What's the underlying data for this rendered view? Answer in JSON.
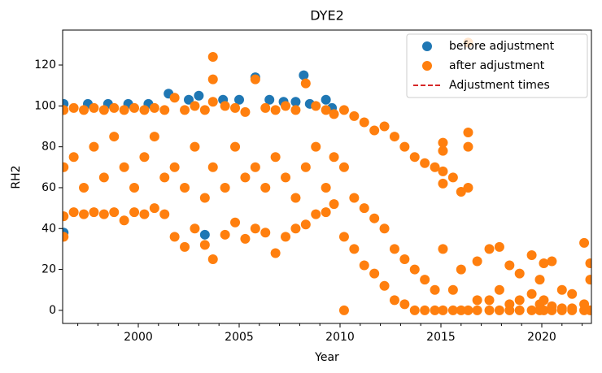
{
  "chart_data": {
    "type": "scatter",
    "title": "DYE2",
    "xlabel": "Year",
    "ylabel": "RH2",
    "xlim": [
      1996.25,
      2022.46
    ],
    "ylim": [
      -6.4,
      137.1
    ],
    "xticks": [
      2000,
      2005,
      2010,
      2015,
      2020
    ],
    "xminorticks": [
      1997,
      1998,
      1999,
      2001,
      2002,
      2003,
      2004,
      2006,
      2007,
      2008,
      2009,
      2011,
      2012,
      2013,
      2014,
      2016,
      2017,
      2018,
      2019,
      2021,
      2022
    ],
    "yticks": [
      0,
      20,
      40,
      60,
      80,
      100,
      120
    ],
    "legend": "upper right",
    "series": [
      {
        "name": "before adjustment",
        "color": "#1f77b4",
        "marker": "circle",
        "x": [
          1996.3,
          1996.3,
          1997.5,
          1998.5,
          1999.5,
          2000.5,
          2001.5,
          2002.5,
          2003.3,
          2003.0,
          2004.2,
          2005.0,
          2005.8,
          2006.5,
          2007.2,
          2007.8,
          2008.2,
          2008.5,
          2009.3,
          2009.6
        ],
        "values": [
          38,
          101,
          101,
          101,
          101,
          101,
          106,
          103,
          37,
          105,
          103,
          103,
          114,
          103,
          102,
          102,
          115,
          101,
          103,
          99
        ]
      },
      {
        "name": "after adjustment",
        "color": "#ff7f0e",
        "marker": "circle",
        "x": [
          1996.3,
          1996.3,
          1996.3,
          1996.3,
          1996.8,
          1996.8,
          1996.8,
          1997.3,
          1997.3,
          1997.3,
          1997.8,
          1997.8,
          1997.8,
          1998.3,
          1998.3,
          1998.3,
          1998.8,
          1998.8,
          1998.8,
          1999.3,
          1999.3,
          1999.3,
          1999.8,
          1999.8,
          1999.8,
          2000.3,
          2000.3,
          2000.3,
          2000.8,
          2000.8,
          2000.8,
          2001.3,
          2001.3,
          2001.3,
          2001.8,
          2001.8,
          2001.8,
          2002.3,
          2002.3,
          2002.3,
          2002.8,
          2002.8,
          2002.8,
          2003.3,
          2003.3,
          2003.3,
          2003.7,
          2003.7,
          2003.7,
          2003.7,
          2003.7,
          2004.3,
          2004.3,
          2004.3,
          2004.8,
          2004.8,
          2004.8,
          2005.3,
          2005.3,
          2005.3,
          2005.8,
          2005.8,
          2005.8,
          2006.3,
          2006.3,
          2006.3,
          2006.8,
          2006.8,
          2006.8,
          2007.3,
          2007.3,
          2007.3,
          2007.8,
          2007.8,
          2007.8,
          2008.3,
          2008.3,
          2008.3,
          2008.8,
          2008.8,
          2008.8,
          2009.3,
          2009.3,
          2009.3,
          2009.7,
          2009.7,
          2009.7,
          2010.2,
          2010.2,
          2010.2,
          2010.2,
          2010.7,
          2010.7,
          2010.7,
          2011.2,
          2011.2,
          2011.2,
          2011.7,
          2011.7,
          2011.7,
          2012.2,
          2012.2,
          2012.2,
          2012.7,
          2012.7,
          2012.7,
          2013.2,
          2013.2,
          2013.2,
          2013.7,
          2013.7,
          2013.7,
          2014.2,
          2014.2,
          2014.2,
          2014.7,
          2014.7,
          2014.7,
          2015.1,
          2015.1,
          2015.1,
          2015.1,
          2015.1,
          2015.1,
          2015.6,
          2015.6,
          2015.6,
          2016.0,
          2016.0,
          2016.0,
          2016.35,
          2016.35,
          2016.35,
          2016.35,
          2016.35,
          2016.8,
          2016.8,
          2016.8,
          2017.4,
          2017.4,
          2017.4,
          2017.9,
          2017.9,
          2017.9,
          2018.4,
          2018.4,
          2018.4,
          2018.9,
          2018.9,
          2018.9,
          2019.5,
          2019.5,
          2019.5,
          2019.9,
          2019.9,
          2019.9,
          2020.1,
          2020.1,
          2020.1,
          2020.5,
          2020.5,
          2020.5,
          2021.0,
          2021.0,
          2021.0,
          2021.5,
          2021.5,
          2021.5,
          2022.1,
          2022.1,
          2022.1,
          2022.4,
          2022.4,
          2022.4
        ],
        "values": [
          36,
          46,
          98,
          70,
          48,
          99,
          75,
          47,
          98,
          60,
          48,
          99,
          80,
          47,
          98,
          65,
          48,
          99,
          85,
          44,
          98,
          70,
          48,
          99,
          60,
          47,
          98,
          75,
          50,
          99,
          85,
          47,
          98,
          65,
          36,
          104,
          70,
          31,
          98,
          60,
          40,
          100,
          80,
          32,
          98,
          55,
          25,
          124,
          113,
          102,
          70,
          37,
          100,
          60,
          43,
          99,
          80,
          35,
          97,
          65,
          40,
          113,
          70,
          38,
          99,
          60,
          28,
          98,
          75,
          36,
          100,
          65,
          40,
          98,
          55,
          42,
          111,
          70,
          47,
          100,
          80,
          48,
          98,
          60,
          52,
          96,
          75,
          36,
          98,
          70,
          0,
          30,
          95,
          55,
          22,
          92,
          50,
          18,
          88,
          45,
          12,
          90,
          40,
          5,
          85,
          30,
          3,
          80,
          25,
          0,
          75,
          20,
          0,
          72,
          15,
          0,
          70,
          10,
          0,
          82,
          78,
          68,
          62,
          30,
          0,
          65,
          10,
          0,
          58,
          20,
          0,
          131,
          87,
          80,
          60,
          0,
          24,
          5,
          0,
          30,
          5,
          0,
          31,
          10,
          0,
          22,
          3,
          0,
          18,
          5,
          0,
          27,
          8,
          0,
          15,
          3,
          0,
          23,
          5,
          0,
          24,
          2,
          0,
          10,
          1,
          0,
          8,
          1,
          0,
          33,
          3,
          0,
          23,
          15
        ]
      },
      {
        "name": "Adjustment times",
        "color": "#d62728",
        "marker": "dashed-line",
        "x": [],
        "values": []
      }
    ]
  }
}
